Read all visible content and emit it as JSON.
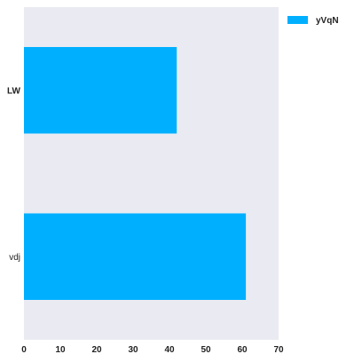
{
  "chart_data": {
    "type": "bar",
    "orientation": "horizontal",
    "categories": [
      "LW",
      "vdj"
    ],
    "series": [
      {
        "name": "yVqN",
        "values": [
          42,
          61
        ],
        "color": "#00b0ff"
      }
    ],
    "title": "",
    "xlabel": "",
    "ylabel": "",
    "xlim": [
      0,
      70
    ],
    "xticks": [
      "0",
      "10",
      "20",
      "30",
      "40",
      "50",
      "60",
      "70"
    ],
    "grid": false,
    "legend_position": "top-right",
    "plot_background": "#eaeaf2"
  }
}
